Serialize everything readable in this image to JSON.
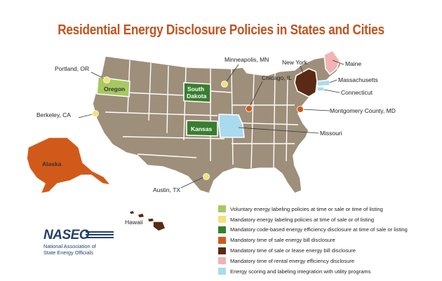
{
  "title": "Residential Energy Disclosure Policies in States and Cities",
  "colors": {
    "base_state": "#9e8f7b",
    "state_border": "#ffffff",
    "voluntary_labeling": "#a6c95f",
    "mandatory_labeling": "#f2e27a",
    "code_based": "#3a7d2f",
    "sale_bill": "#d15a1a",
    "sale_or_lease_bill": "#5a2a14",
    "rental": "#f2b3b3",
    "utility_integration": "#a9daf0"
  },
  "states": {
    "oregon": "Oregon",
    "south_dakota_1": "South",
    "south_dakota_2": "Dakota",
    "kansas": "Kansas",
    "alaska": "Alaska",
    "hawaii": "Hawaii"
  },
  "callouts": {
    "portland": "Portland, OR",
    "berkeley": "Berkeley, CA",
    "minneapolis": "Minneapolis, MN",
    "chicago": "Chicago, IL",
    "new_york": "New York",
    "maine": "Maine",
    "massachusetts": "Massachusetts",
    "connecticut": "Connecticut",
    "montgomery": "Montgomery County, MD",
    "missouri": "Missouri",
    "austin": "Austin, TX"
  },
  "legend": [
    {
      "label": "Voluntary energy labeling policies at time or sale or time of listing",
      "color": "#a6c95f"
    },
    {
      "label": "Mandatory energy labeling policies at time of sale or of listing",
      "color": "#f2e27a"
    },
    {
      "label": "Mandatory code-based energy efficiency disclosure at time of sale or listing",
      "color": "#3a7d2f"
    },
    {
      "label": "Mandatory time of sale energy bill disclosure",
      "color": "#d15a1a"
    },
    {
      "label": "Mandatory time of sale or lease energy bill disclosure",
      "color": "#5a2a14"
    },
    {
      "label": "Mandatory time of rental energy efficiency disclosure",
      "color": "#f2b3b3"
    },
    {
      "label": "Energy scoring and labeling integration with utility programs",
      "color": "#a9daf0"
    }
  ],
  "naseo": {
    "logo": "NASEO",
    "line1": "National Association of",
    "line2": "State Energy Officials"
  }
}
